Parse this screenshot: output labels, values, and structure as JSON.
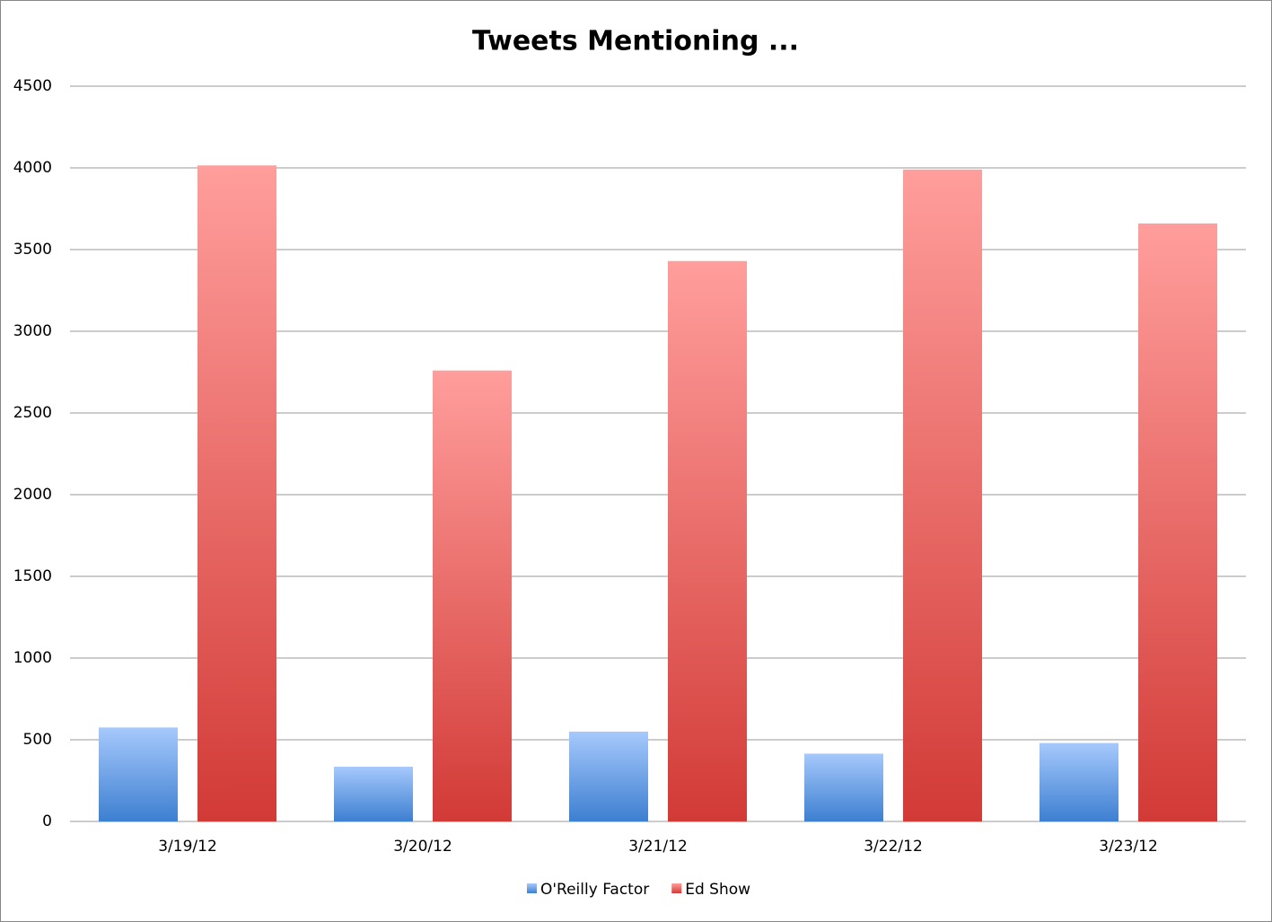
{
  "chart_data": {
    "type": "bar",
    "title": "Tweets Mentioning ...",
    "categories": [
      "3/19/12",
      "3/20/12",
      "3/21/12",
      "3/22/12",
      "3/23/12"
    ],
    "series": [
      {
        "name": "O'Reilly Factor",
        "color": "#3d7fd1",
        "values": [
          575,
          335,
          550,
          415,
          480
        ]
      },
      {
        "name": "Ed Show",
        "color": "#d23a36",
        "values": [
          4015,
          2760,
          3430,
          3990,
          3660
        ]
      }
    ],
    "ylim": [
      0,
      4500
    ],
    "yticks": [
      0,
      500,
      1000,
      1500,
      2000,
      2500,
      3000,
      3500,
      4000,
      4500
    ],
    "grid": true,
    "legend": "bottom"
  }
}
